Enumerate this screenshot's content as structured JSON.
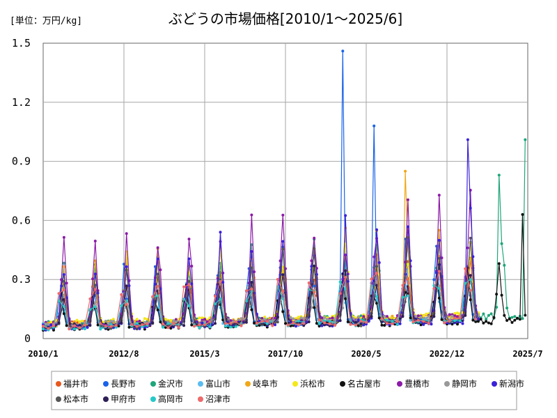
{
  "chart_data": {
    "type": "line",
    "title": "ぶどうの市場価格[2010/1～2025/6]",
    "unit_label": "[単位：万円/kg]",
    "y_ticks": [
      "0",
      "0.3",
      "0.6",
      "0.9",
      "1.2",
      "1.5"
    ],
    "ylim": [
      0,
      1.5
    ],
    "x_ticks": [
      "2010/1",
      "2012/8",
      "2015/3",
      "2017/10",
      "2020/5",
      "2022/12",
      "2025/7"
    ],
    "xlim": [
      "2010-01",
      "2025-07"
    ],
    "grid": true,
    "legend_position": "bottom",
    "series": [
      {
        "name": "福井市",
        "color": "#e8571e"
      },
      {
        "name": "長野市",
        "color": "#1a63e8"
      },
      {
        "name": "金沢市",
        "color": "#1fa57a"
      },
      {
        "name": "富山市",
        "color": "#5cbcf0"
      },
      {
        "name": "岐阜市",
        "color": "#f0a818"
      },
      {
        "name": "浜松市",
        "color": "#f4e81a"
      },
      {
        "name": "名古屋市",
        "color": "#111111"
      },
      {
        "name": "豊橋市",
        "color": "#8c1aa8"
      },
      {
        "name": "静岡市",
        "color": "#999999"
      },
      {
        "name": "新潟市",
        "color": "#3a22d8"
      },
      {
        "name": "松本市",
        "color": "#555555"
      },
      {
        "name": "甲府市",
        "color": "#2e1f55"
      },
      {
        "name": "高岡市",
        "color": "#28c8c8"
      },
      {
        "name": "沼津市",
        "color": "#ee6a6a"
      }
    ],
    "notable_points": [
      {
        "series": "長野市",
        "x": "2019-08",
        "y": 1.46
      },
      {
        "series": "長野市",
        "x": "2020-08",
        "y": 1.08
      },
      {
        "series": "岐阜市",
        "x": "2021-08",
        "y": 0.85
      },
      {
        "series": "新潟市",
        "x": "2023-08",
        "y": 1.01
      },
      {
        "series": "金沢市",
        "x": "2024-08",
        "y": 0.83
      },
      {
        "series": "金沢市",
        "x": "2025-06",
        "y": 1.01
      },
      {
        "series": "名古屋市",
        "x": "2025-05",
        "y": 0.63
      }
    ]
  }
}
